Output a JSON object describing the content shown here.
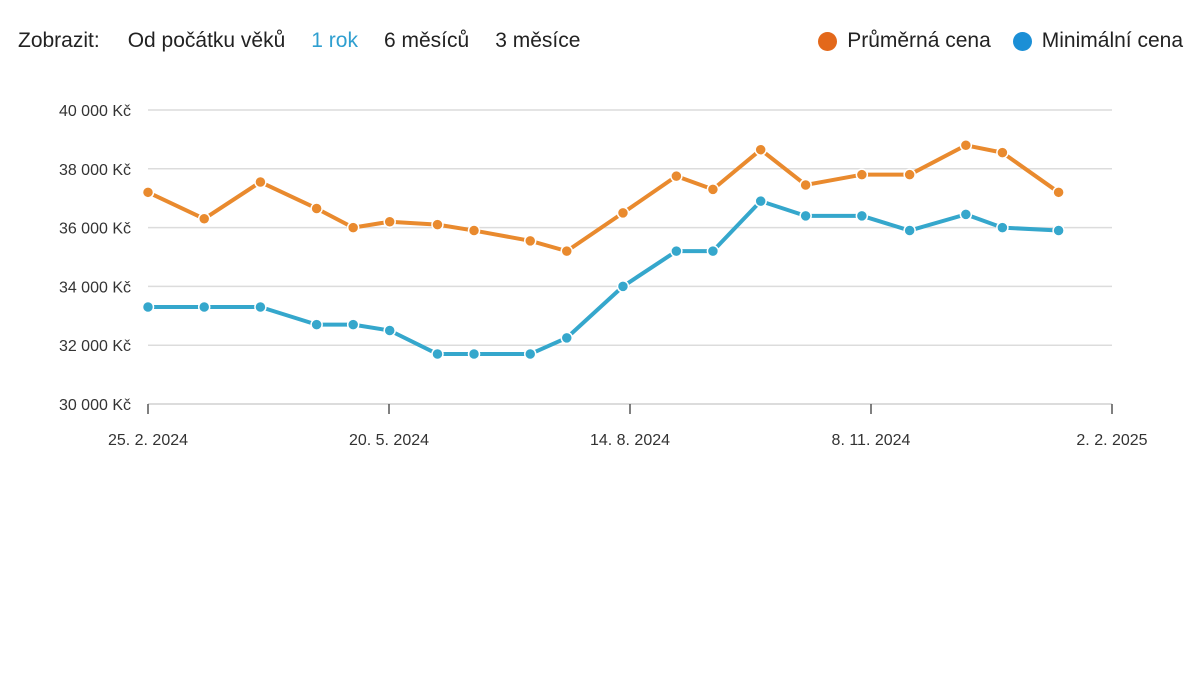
{
  "toolbar": {
    "label": "Zobrazit:",
    "options": [
      "Od počátku věků",
      "1 rok",
      "6 měsíců",
      "3 měsíce"
    ],
    "active_index": 1
  },
  "legend": {
    "items": [
      {
        "label": "Průměrná cena",
        "color": "#e3681a"
      },
      {
        "label": "Minimální cena",
        "color": "#1b8fd6"
      }
    ]
  },
  "chart_data": {
    "type": "line",
    "title": "",
    "xlabel": "",
    "ylabel": "",
    "ylim": [
      30000,
      40000
    ],
    "y_ticks": [
      30000,
      32000,
      34000,
      36000,
      38000,
      40000
    ],
    "y_tick_labels": [
      "30 000 Kč",
      "32 000 Kč",
      "34 000 Kč",
      "36 000 Kč",
      "38 000 Kč",
      "40 000 Kč"
    ],
    "x_tick_labels": [
      "25. 2. 2024",
      "20. 5. 2024",
      "14. 8. 2024",
      "8. 11. 2024",
      "2. 2. 2025"
    ],
    "x": [
      "2024-02-25",
      "2024-03-16",
      "2024-04-05",
      "2024-04-25",
      "2024-05-08",
      "2024-05-21",
      "2024-06-07",
      "2024-06-20",
      "2024-07-10",
      "2024-07-23",
      "2024-08-12",
      "2024-08-31",
      "2024-09-13",
      "2024-09-30",
      "2024-10-16",
      "2024-11-05",
      "2024-11-22",
      "2024-12-12",
      "2024-12-25",
      "2025-01-14",
      "2025-02-02"
    ],
    "series": [
      {
        "name": "Průměrná cena",
        "color": "#e98a2e",
        "values": [
          37200,
          36300,
          37550,
          36650,
          36000,
          36200,
          36100,
          35900,
          35550,
          35200,
          36500,
          37750,
          37300,
          38650,
          37450,
          37800,
          37800,
          38800,
          38550,
          37200,
          null
        ]
      },
      {
        "name": "Minimální cena",
        "color": "#35a7cc",
        "values": [
          33300,
          33300,
          33300,
          32700,
          32700,
          32500,
          31700,
          31700,
          31700,
          32250,
          34000,
          35200,
          35200,
          36900,
          36400,
          36400,
          35900,
          36450,
          36000,
          35900,
          null
        ]
      }
    ]
  }
}
